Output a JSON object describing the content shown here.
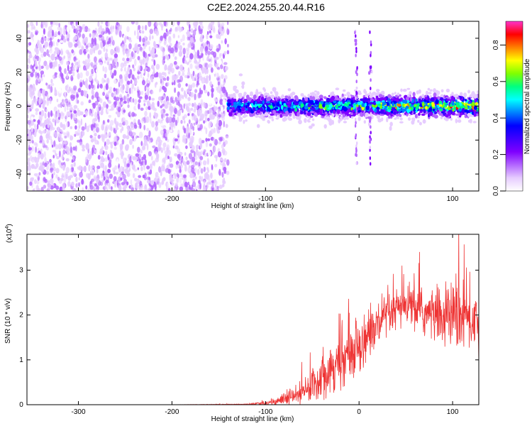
{
  "title": "C2E2.2024.255.20.44.R16",
  "colors": {
    "snr_line": "#ee3333",
    "colormap": [
      "#ffffff",
      "#e6ccff",
      "#b366ff",
      "#7f00ff",
      "#4000ff",
      "#0000ff",
      "#0080ff",
      "#00ffff",
      "#00ff80",
      "#80ff00",
      "#ffff00",
      "#ff8000",
      "#ff0000",
      "#ff33cc"
    ]
  },
  "chart_data": [
    {
      "type": "heatmap",
      "title": "",
      "xlabel": "Height of straight line (km)",
      "ylabel": "Frequency (Hz)",
      "xlim": [
        -355,
        128
      ],
      "ylim": [
        -50,
        50
      ],
      "xticks": [
        -300,
        -200,
        -100,
        0,
        100
      ],
      "yticks": [
        -40,
        -20,
        0,
        20,
        40
      ],
      "noise_region_x": [
        -355,
        -140
      ],
      "signal_band_center_hz": 0,
      "signal_band_halfwidth_hz": [
        6,
        10
      ],
      "vertical_streaks_x": [
        -3,
        12
      ],
      "colorbar": {
        "label": "Normalized spectral amplitude",
        "range": [
          0,
          0.93
        ],
        "ticks": [
          0.0,
          0.2,
          0.4,
          0.6,
          0.8
        ]
      }
    },
    {
      "type": "line",
      "title": "",
      "xlabel": "Height of straight line (km)",
      "ylabel": "SNR (10 * v/v)",
      "multiplier": "(x10^4)",
      "xlim": [
        -355,
        128
      ],
      "ylim": [
        0,
        3.8
      ],
      "xticks": [
        -300,
        -200,
        -100,
        0,
        100
      ],
      "yticks": [
        0,
        1,
        2,
        3
      ],
      "series": [
        {
          "x": [
            -355,
            -200,
            -120,
            -100,
            -80,
            -60,
            -50,
            -40,
            -30,
            -20,
            -10,
            0,
            10,
            20,
            30,
            40,
            50,
            60,
            70,
            80,
            90,
            100,
            110,
            120,
            128
          ],
          "y": [
            0.0,
            0.0,
            0.01,
            0.03,
            0.12,
            0.25,
            0.45,
            0.65,
            0.85,
            0.95,
            1.15,
            1.35,
            1.55,
            1.75,
            1.95,
            2.1,
            2.2,
            2.15,
            2.05,
            2.0,
            1.95,
            2.0,
            1.95,
            1.9,
            1.9
          ],
          "noise_amplitude": [
            0.0,
            0.0,
            0.01,
            0.05,
            0.15,
            0.3,
            0.4,
            0.5,
            0.55,
            0.6,
            0.6,
            0.6,
            0.6,
            0.55,
            0.5,
            0.45,
            0.45,
            0.5,
            0.55,
            0.6,
            0.65,
            0.7,
            0.8,
            0.85,
            0.85
          ]
        }
      ]
    }
  ]
}
